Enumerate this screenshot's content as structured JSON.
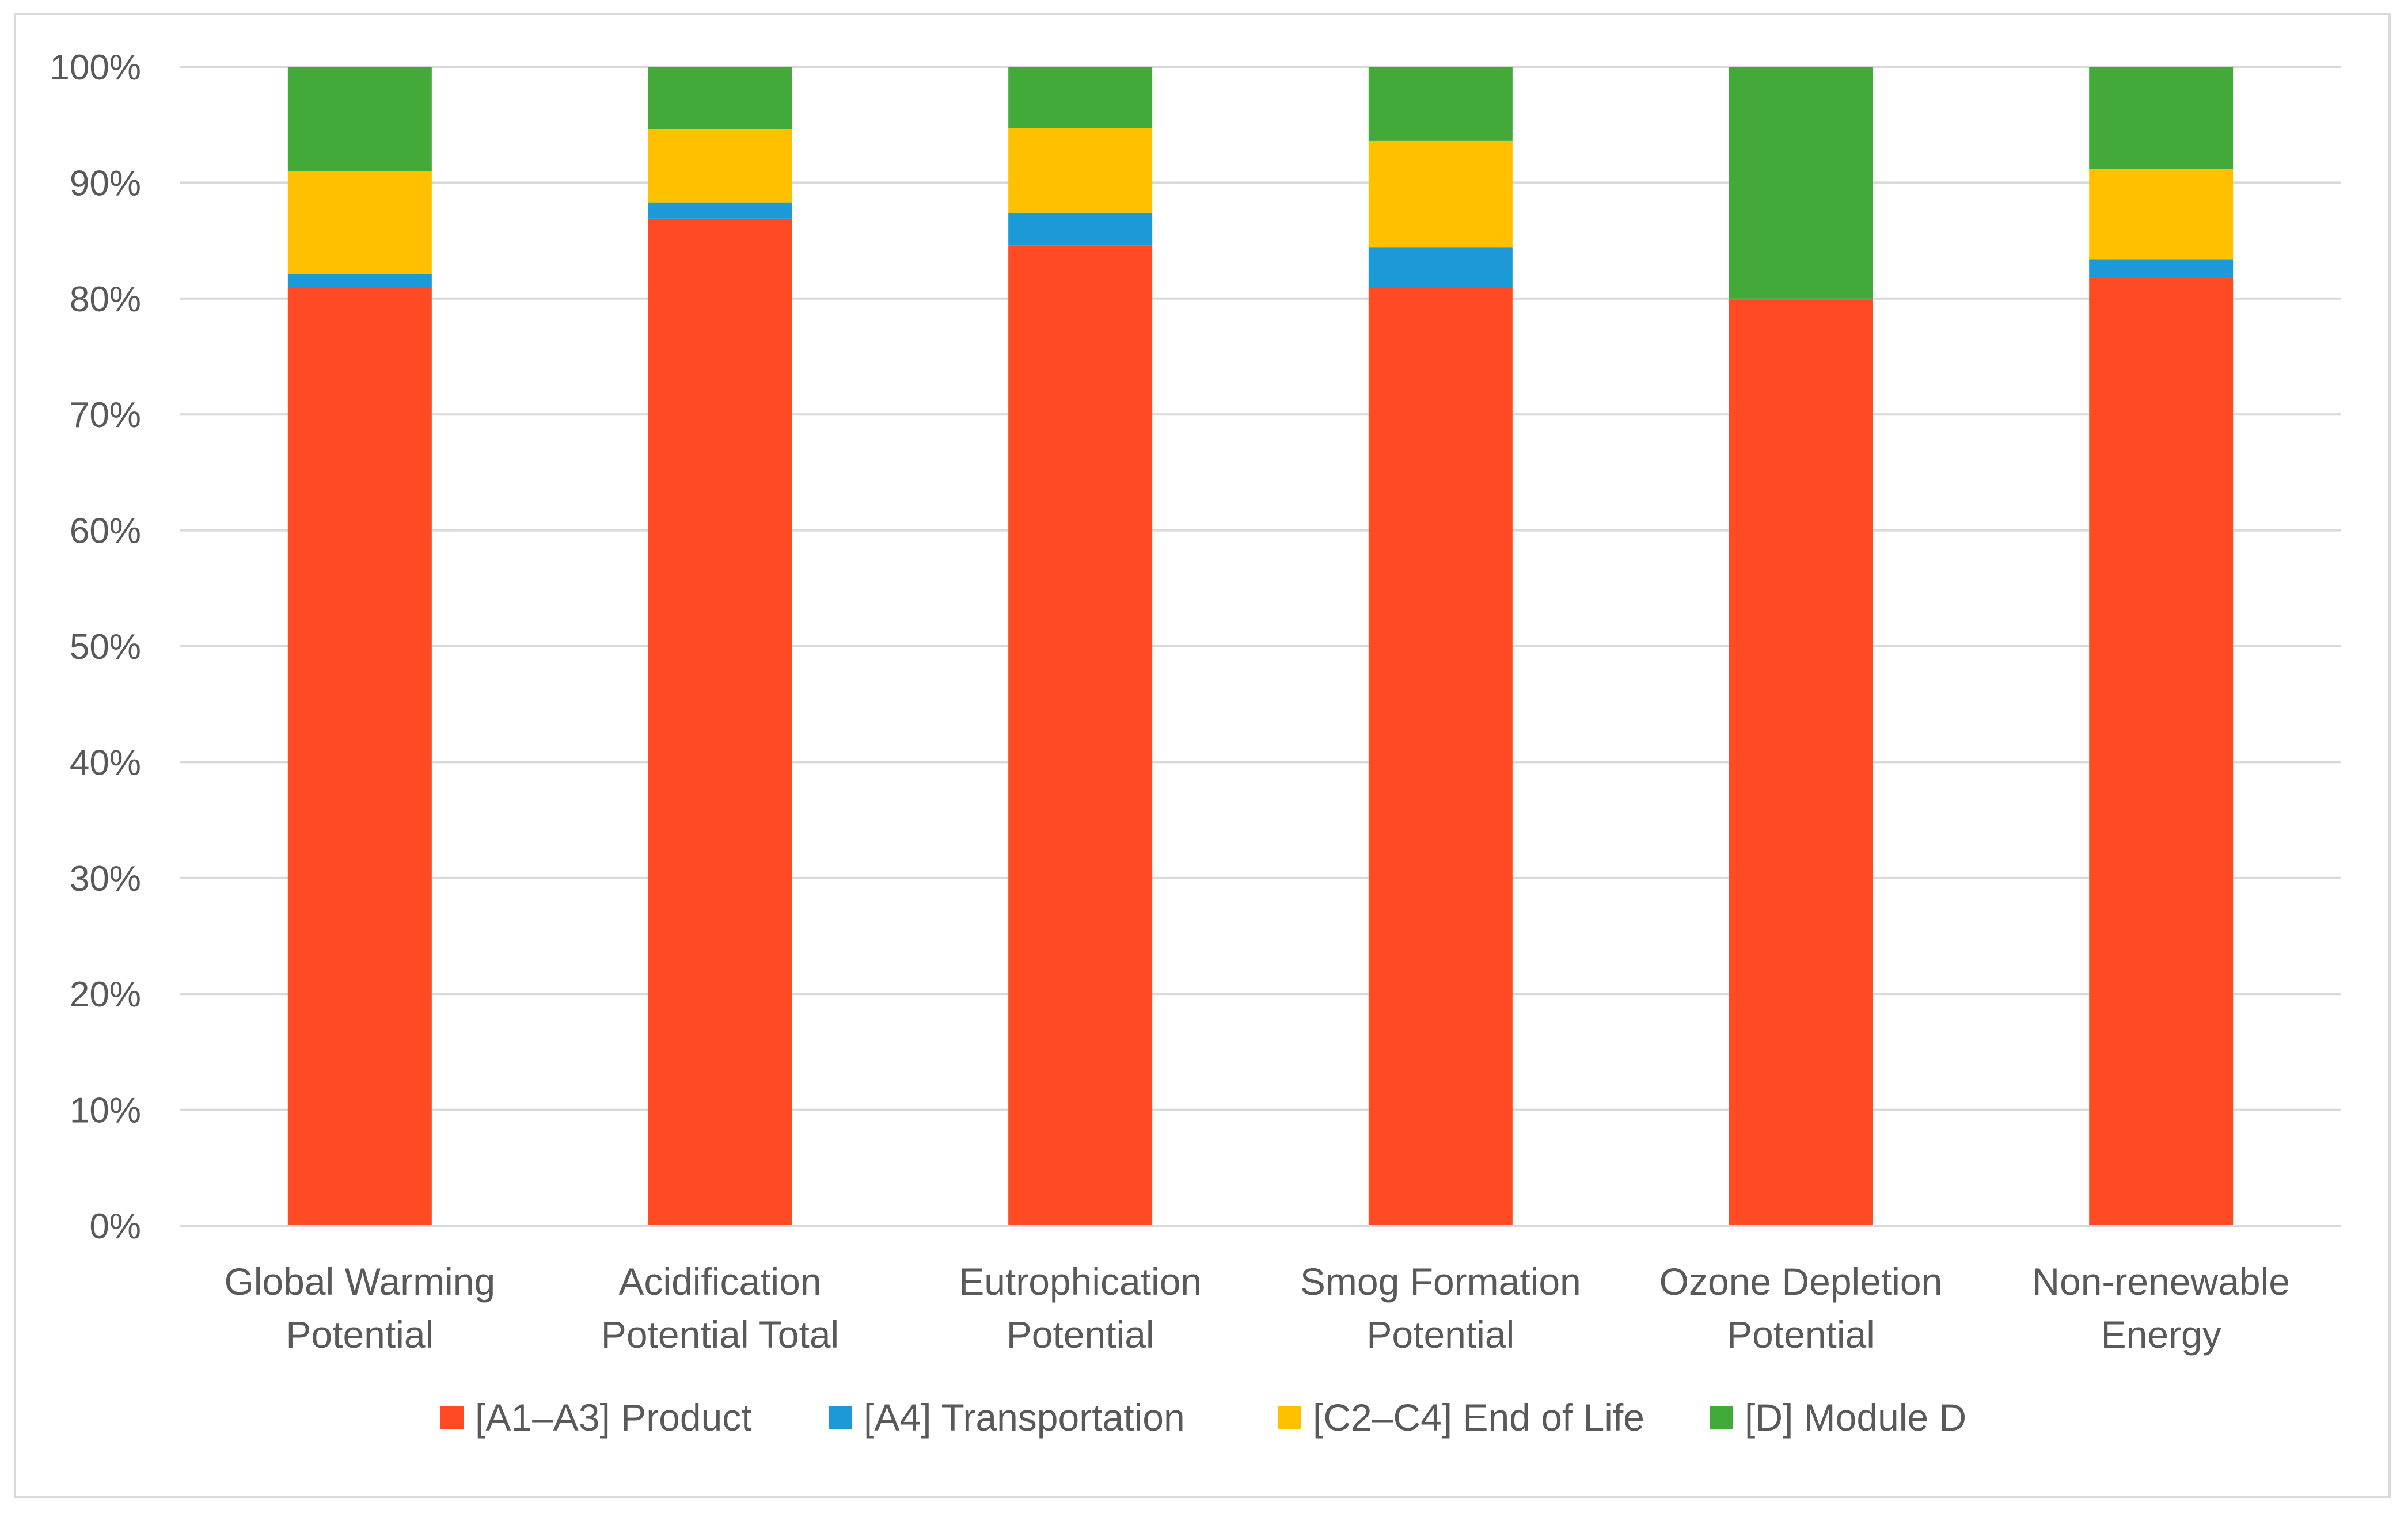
{
  "chart_data": {
    "type": "bar",
    "stacked": true,
    "title": "",
    "xlabel": "",
    "ylabel": "",
    "ylim": [
      0,
      100
    ],
    "ytick_step": 10,
    "y_tick_format": "percent",
    "grid": true,
    "legend_position": "bottom",
    "categories": [
      [
        "Global Warming",
        "Potential"
      ],
      [
        "Acidification",
        "Potential Total"
      ],
      [
        "Eutrophication",
        "Potential"
      ],
      [
        "Smog Formation",
        "Potential"
      ],
      [
        "Ozone Depletion",
        "Potential"
      ],
      [
        "Non-renewable",
        "Energy"
      ]
    ],
    "series": [
      {
        "name": "[A1–A3] Product",
        "color": "#FF4B23",
        "values": [
          81.0,
          86.9,
          84.6,
          81.0,
          79.9,
          81.8
        ]
      },
      {
        "name": "[A4] Transportation",
        "color": "#1B9AD7",
        "values": [
          1.1,
          1.4,
          2.8,
          3.4,
          0.1,
          1.6
        ]
      },
      {
        "name": "[C2–C4] End of Life",
        "color": "#FFC000",
        "values": [
          8.9,
          6.3,
          7.3,
          9.2,
          0.0,
          7.8
        ]
      },
      {
        "name": "[D] Module D",
        "color": "#43AA39",
        "values": [
          9.0,
          5.4,
          5.3,
          6.4,
          20.0,
          8.8
        ]
      }
    ]
  }
}
